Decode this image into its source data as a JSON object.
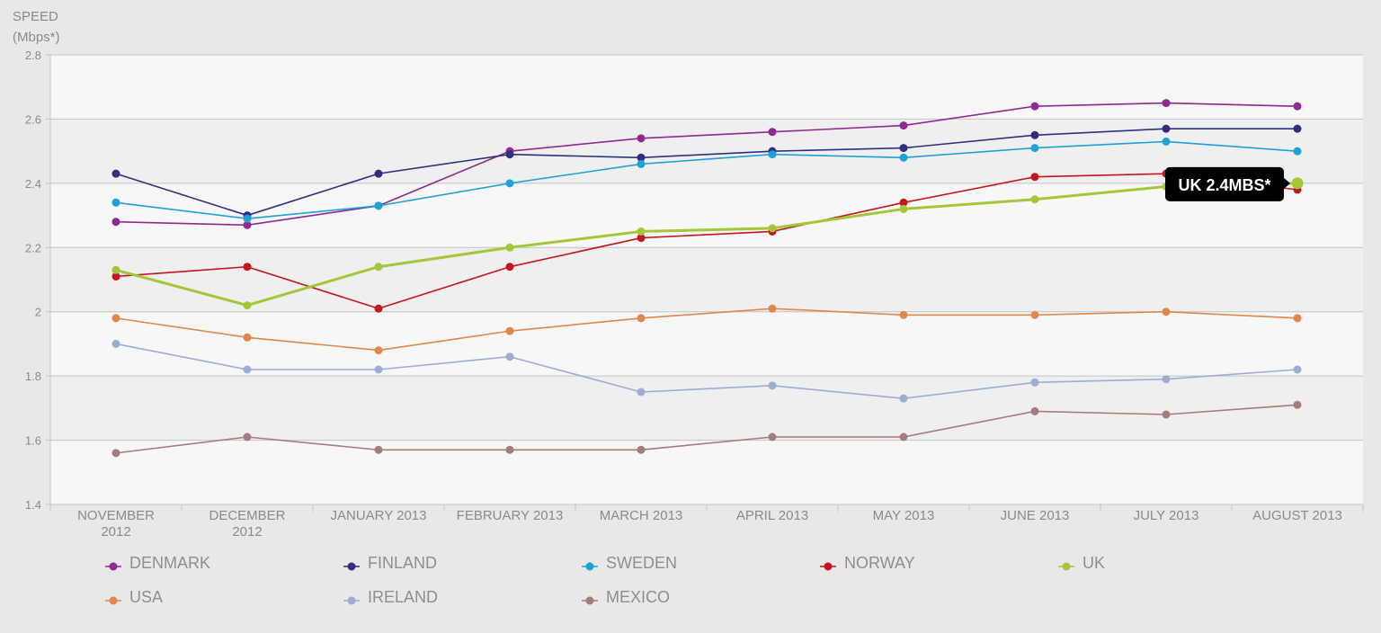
{
  "chart_data": {
    "type": "line",
    "ylabel_lines": [
      "SPEED",
      "(Mbps*)"
    ],
    "ylim": [
      1.4,
      2.8
    ],
    "yticks": [
      {
        "value": 1.4,
        "label": "1.4"
      },
      {
        "value": 1.6,
        "label": "1.6"
      },
      {
        "value": 1.8,
        "label": "1.8"
      },
      {
        "value": 2.0,
        "label": "2"
      },
      {
        "value": 2.2,
        "label": "2.2"
      },
      {
        "value": 2.4,
        "label": "2.4"
      },
      {
        "value": 2.6,
        "label": "2.6"
      },
      {
        "value": 2.8,
        "label": "2.8"
      }
    ],
    "categories": [
      [
        "NOVEMBER",
        "2012"
      ],
      [
        "DECEMBER",
        "2012"
      ],
      [
        "JANUARY 2013"
      ],
      [
        "FEBRUARY 2013"
      ],
      [
        "MARCH 2013"
      ],
      [
        "APRIL 2013"
      ],
      [
        "MAY 2013"
      ],
      [
        "JUNE 2013"
      ],
      [
        "JULY 2013"
      ],
      [
        "AUGUST 2013"
      ]
    ],
    "grid": true,
    "legend_position": "bottom",
    "series": [
      {
        "name": "DENMARK",
        "color": "#8e2a92",
        "values": [
          2.28,
          2.27,
          2.33,
          2.5,
          2.54,
          2.56,
          2.58,
          2.64,
          2.65,
          2.64
        ]
      },
      {
        "name": "FINLAND",
        "color": "#2f2f7e",
        "values": [
          2.43,
          2.3,
          2.43,
          2.49,
          2.48,
          2.5,
          2.51,
          2.55,
          2.57,
          2.57
        ]
      },
      {
        "name": "SWEDEN",
        "color": "#1ea1d6",
        "values": [
          2.34,
          2.29,
          2.33,
          2.4,
          2.46,
          2.49,
          2.48,
          2.51,
          2.53,
          2.5
        ]
      },
      {
        "name": "NORWAY",
        "color": "#c4161c",
        "values": [
          2.11,
          2.14,
          2.01,
          2.14,
          2.23,
          2.25,
          2.34,
          2.42,
          2.43,
          2.38
        ]
      },
      {
        "name": "UK",
        "color": "#a4c639",
        "values": [
          2.13,
          2.02,
          2.14,
          2.2,
          2.25,
          2.26,
          2.32,
          2.35,
          2.39,
          2.4
        ],
        "highlight": true
      },
      {
        "name": "USA",
        "color": "#e0874a",
        "values": [
          1.98,
          1.92,
          1.88,
          1.94,
          1.98,
          2.01,
          1.99,
          1.99,
          2.0,
          1.98
        ]
      },
      {
        "name": "IRELAND",
        "color": "#9aaed4",
        "values": [
          1.9,
          1.82,
          1.82,
          1.86,
          1.75,
          1.77,
          1.73,
          1.78,
          1.79,
          1.82
        ]
      },
      {
        "name": "MEXICO",
        "color": "#a57c7c",
        "values": [
          1.56,
          1.61,
          1.57,
          1.57,
          1.57,
          1.61,
          1.61,
          1.69,
          1.68,
          1.71
        ]
      }
    ],
    "tooltip": {
      "text": "UK 2.4MBS*",
      "series": "UK",
      "category_index": 9
    }
  }
}
